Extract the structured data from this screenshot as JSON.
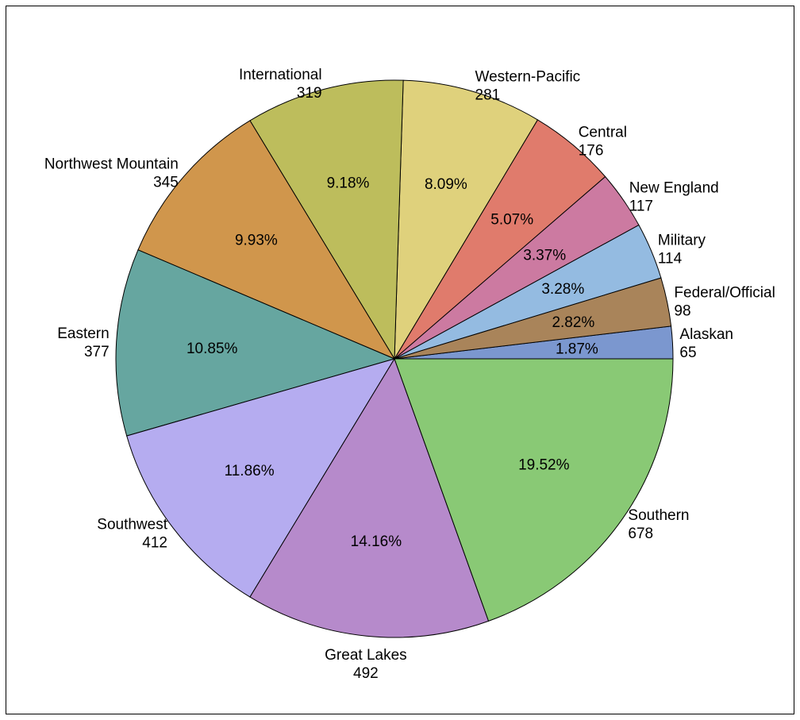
{
  "chart_data": {
    "type": "pie",
    "title": "",
    "start": "east",
    "direction": "counterclockwise",
    "slices": [
      {
        "label": "Alaskan",
        "value": 65,
        "percent": "1.87%",
        "color": "#7b97cf"
      },
      {
        "label": "Federal/Official",
        "value": 98,
        "percent": "2.82%",
        "color": "#a9845a"
      },
      {
        "label": "Military",
        "value": 114,
        "percent": "3.28%",
        "color": "#94bbe1"
      },
      {
        "label": "New England",
        "value": 117,
        "percent": "3.37%",
        "color": "#cc7aa1"
      },
      {
        "label": "Central",
        "value": 176,
        "percent": "5.07%",
        "color": "#e07b6c"
      },
      {
        "label": "Western-Pacific",
        "value": 281,
        "percent": "8.09%",
        "color": "#dfd17c"
      },
      {
        "label": "International",
        "value": 319,
        "percent": "9.18%",
        "color": "#bdbd5c"
      },
      {
        "label": "Northwest Mountain",
        "value": 345,
        "percent": "9.93%",
        "color": "#d0964c"
      },
      {
        "label": "Eastern",
        "value": 377,
        "percent": "10.85%",
        "color": "#66a6a0"
      },
      {
        "label": "Southwest",
        "value": 412,
        "percent": "11.86%",
        "color": "#b5acf0"
      },
      {
        "label": "Great Lakes",
        "value": 492,
        "percent": "14.16%",
        "color": "#b68acb"
      },
      {
        "label": "Southern",
        "value": 678,
        "percent": "19.52%",
        "color": "#89c975"
      }
    ]
  }
}
